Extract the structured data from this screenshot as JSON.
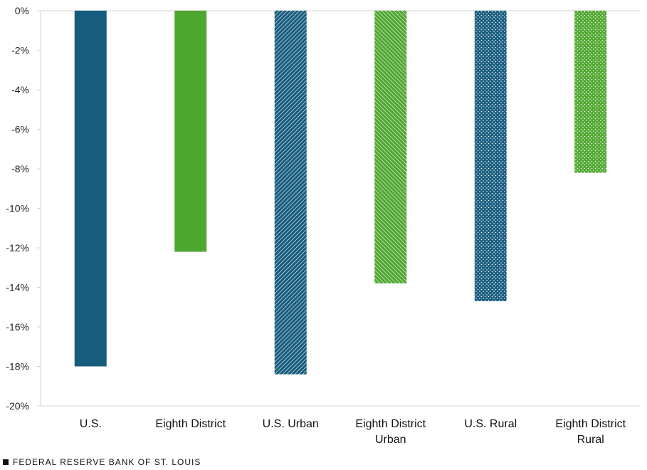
{
  "chart_data": {
    "type": "bar",
    "categories": [
      "U.S.",
      "Eighth District",
      "U.S. Urban",
      "Eighth District Urban",
      "U.S. Rural",
      "Eighth District Rural"
    ],
    "category_lines": [
      [
        "U.S."
      ],
      [
        "Eighth District"
      ],
      [
        "U.S. Urban"
      ],
      [
        "Eighth District",
        "Urban"
      ],
      [
        "U.S. Rural"
      ],
      [
        "Eighth District",
        "Rural"
      ]
    ],
    "values": [
      -18.0,
      -12.2,
      -18.4,
      -13.8,
      -14.7,
      -8.2
    ],
    "bar_styles": [
      "solid",
      "solid",
      "diagonal",
      "diagonal",
      "dotted",
      "dotted"
    ],
    "bar_colors": [
      "#165c7d",
      "#4ea72e",
      "#165c7d",
      "#4ea72e",
      "#165c7d",
      "#4ea72e"
    ],
    "title": "",
    "xlabel": "",
    "ylabel": "",
    "ylim": [
      -20,
      0
    ],
    "yticks": [
      0,
      -2,
      -4,
      -6,
      -8,
      -10,
      -12,
      -14,
      -16,
      -18,
      -20
    ],
    "ytick_labels": [
      "0%",
      "-2%",
      "-4%",
      "-6%",
      "-8%",
      "-10%",
      "-12%",
      "-14%",
      "-16%",
      "-18%",
      "-20%"
    ],
    "grid": false,
    "legend": "none"
  },
  "footer": {
    "source": "FEDERAL RESERVE BANK OF ST. LOUIS"
  },
  "colors": {
    "axis": "#d0d0d0",
    "blue": "#165c7d",
    "green": "#4ea72e"
  }
}
